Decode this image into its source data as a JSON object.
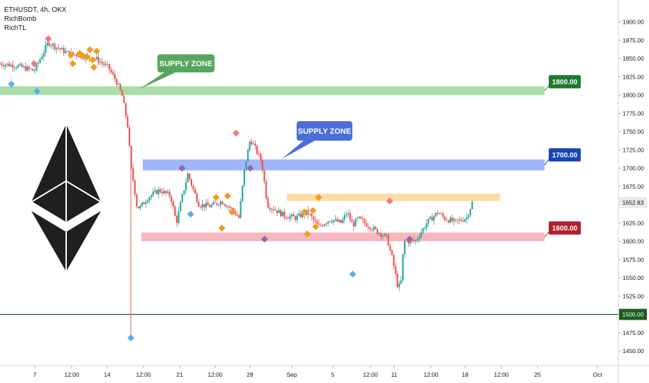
{
  "legend": {
    "symbol_line": "ETHUSDT, 4h, OKX",
    "indicator_1": "RichBomb",
    "indicator_2": "RichTL"
  },
  "chart_data": {
    "type": "candlestick",
    "ylim": [
      1430,
      1930
    ],
    "y_ticks": [
      "1900.00",
      "1875.00",
      "1850.00",
      "1825.00",
      "1800.00",
      "1775.00",
      "1750.00",
      "1725.00",
      "1700.00",
      "1675.00",
      "1650.00",
      "1625.00",
      "1600.00",
      "1575.00",
      "1550.00",
      "1525.00",
      "1500.00",
      "1475.00",
      "1450.00"
    ],
    "x_ticks": [
      "7",
      "12:00",
      "14",
      "12:00",
      "21",
      "12:00",
      "28",
      "Sep",
      "5",
      "12:00",
      "11",
      "12:00",
      "18",
      "12:00",
      "25",
      "Oct"
    ],
    "last_price": "1652.83",
    "price_path": [
      [
        0.0,
        1843
      ],
      [
        0.03,
        1840
      ],
      [
        0.06,
        1833
      ],
      [
        0.085,
        1872
      ],
      [
        0.1,
        1865
      ],
      [
        0.12,
        1857
      ],
      [
        0.15,
        1853
      ],
      [
        0.17,
        1849
      ],
      [
        0.19,
        1838
      ],
      [
        0.205,
        1818
      ],
      [
        0.215,
        1798
      ],
      [
        0.225,
        1755
      ],
      [
        0.23,
        1700
      ],
      [
        0.235,
        1680
      ],
      [
        0.24,
        1650
      ],
      [
        0.245,
        1645
      ],
      [
        0.26,
        1660
      ],
      [
        0.28,
        1670
      ],
      [
        0.3,
        1662
      ],
      [
        0.31,
        1625
      ],
      [
        0.32,
        1660
      ],
      [
        0.33,
        1692
      ],
      [
        0.34,
        1670
      ],
      [
        0.35,
        1650
      ],
      [
        0.37,
        1648
      ],
      [
        0.39,
        1655
      ],
      [
        0.41,
        1642
      ],
      [
        0.42,
        1632
      ],
      [
        0.43,
        1700
      ],
      [
        0.44,
        1740
      ],
      [
        0.45,
        1725
      ],
      [
        0.46,
        1708
      ],
      [
        0.47,
        1650
      ],
      [
        0.48,
        1645
      ],
      [
        0.5,
        1635
      ],
      [
        0.52,
        1632
      ],
      [
        0.54,
        1640
      ],
      [
        0.56,
        1620
      ],
      [
        0.58,
        1630
      ],
      [
        0.6,
        1625
      ],
      [
        0.61,
        1640
      ],
      [
        0.62,
        1622
      ],
      [
        0.63,
        1631
      ],
      [
        0.66,
        1615
      ],
      [
        0.68,
        1605
      ],
      [
        0.69,
        1575
      ],
      [
        0.7,
        1535
      ],
      [
        0.705,
        1545
      ],
      [
        0.71,
        1600
      ],
      [
        0.73,
        1600
      ],
      [
        0.75,
        1625
      ],
      [
        0.77,
        1640
      ],
      [
        0.78,
        1632
      ],
      [
        0.8,
        1626
      ],
      [
        0.82,
        1632
      ],
      [
        0.83,
        1653
      ]
    ],
    "wick": {
      "top": 1700,
      "bottom": 1468
    },
    "zones": [
      {
        "name": "supply-zone-1800",
        "from": 1800,
        "to": 1812,
        "color": "#8fd18e",
        "label": "1800.00",
        "label_color": "#1f7a31"
      },
      {
        "name": "supply-zone-1700",
        "from": 1697,
        "to": 1712,
        "color": "#7f9ff5",
        "label": "1700.00",
        "label_color": "#1746b5"
      },
      {
        "name": "orange-zone",
        "from": 1655,
        "to": 1665,
        "color": "#ffcf8a",
        "label": "",
        "label_color": ""
      },
      {
        "name": "demand-zone-1600",
        "from": 1600,
        "to": 1612,
        "color": "#f3a0a8",
        "label": "1600.00",
        "label_color": "#b1202f"
      }
    ],
    "support_line": {
      "value": 1500,
      "label": "1500.00",
      "color": "#1b5e20"
    },
    "callouts": [
      {
        "text": "SUPPLY ZONE",
        "color": "#57a65f"
      },
      {
        "text": "SUPPLY ZONE",
        "color": "#4b6fd6"
      }
    ],
    "markers": [
      {
        "t": 0.02,
        "v": 1815,
        "color": "#5aaee8"
      },
      {
        "t": 0.065,
        "v": 1805,
        "color": "#5aaee8"
      },
      {
        "t": 0.06,
        "v": 1843,
        "color": "#ef7c7c"
      },
      {
        "t": 0.085,
        "v": 1877,
        "color": "#ef7c7c"
      },
      {
        "t": 0.125,
        "v": 1855,
        "color": "#f59b1c"
      },
      {
        "t": 0.128,
        "v": 1843,
        "color": "#f59b1c"
      },
      {
        "t": 0.14,
        "v": 1857,
        "color": "#f59b1c"
      },
      {
        "t": 0.145,
        "v": 1854,
        "color": "#f59b1c"
      },
      {
        "t": 0.153,
        "v": 1852,
        "color": "#f59b1c"
      },
      {
        "t": 0.158,
        "v": 1862,
        "color": "#f59b1c"
      },
      {
        "t": 0.163,
        "v": 1848,
        "color": "#f59b1c"
      },
      {
        "t": 0.17,
        "v": 1860,
        "color": "#f59b1c"
      },
      {
        "t": 0.165,
        "v": 1838,
        "color": "#f59b1c"
      },
      {
        "t": 0.23,
        "v": 1468,
        "color": "#5aaee8"
      },
      {
        "t": 0.32,
        "v": 1700,
        "color": "#8e6aa8"
      },
      {
        "t": 0.335,
        "v": 1637,
        "color": "#5aaee8"
      },
      {
        "t": 0.38,
        "v": 1660,
        "color": "#f59b1c"
      },
      {
        "t": 0.39,
        "v": 1618,
        "color": "#f59b1c"
      },
      {
        "t": 0.4,
        "v": 1662,
        "color": "#f59b1c"
      },
      {
        "t": 0.408,
        "v": 1640,
        "color": "#f59b1c"
      },
      {
        "t": 0.415,
        "v": 1748,
        "color": "#ef7c7c"
      },
      {
        "t": 0.44,
        "v": 1700,
        "color": "#8e6aa8"
      },
      {
        "t": 0.465,
        "v": 1603,
        "color": "#8e6aa8"
      },
      {
        "t": 0.535,
        "v": 1640,
        "color": "#f59b1c"
      },
      {
        "t": 0.55,
        "v": 1642,
        "color": "#f59b1c"
      },
      {
        "t": 0.54,
        "v": 1610,
        "color": "#f59b1c"
      },
      {
        "t": 0.555,
        "v": 1620,
        "color": "#f59b1c"
      },
      {
        "t": 0.56,
        "v": 1660,
        "color": "#f59b1c"
      },
      {
        "t": 0.62,
        "v": 1555,
        "color": "#5aaee8"
      },
      {
        "t": 0.685,
        "v": 1655,
        "color": "#ef7c7c"
      },
      {
        "t": 0.72,
        "v": 1603,
        "color": "#8e6aa8"
      }
    ]
  }
}
